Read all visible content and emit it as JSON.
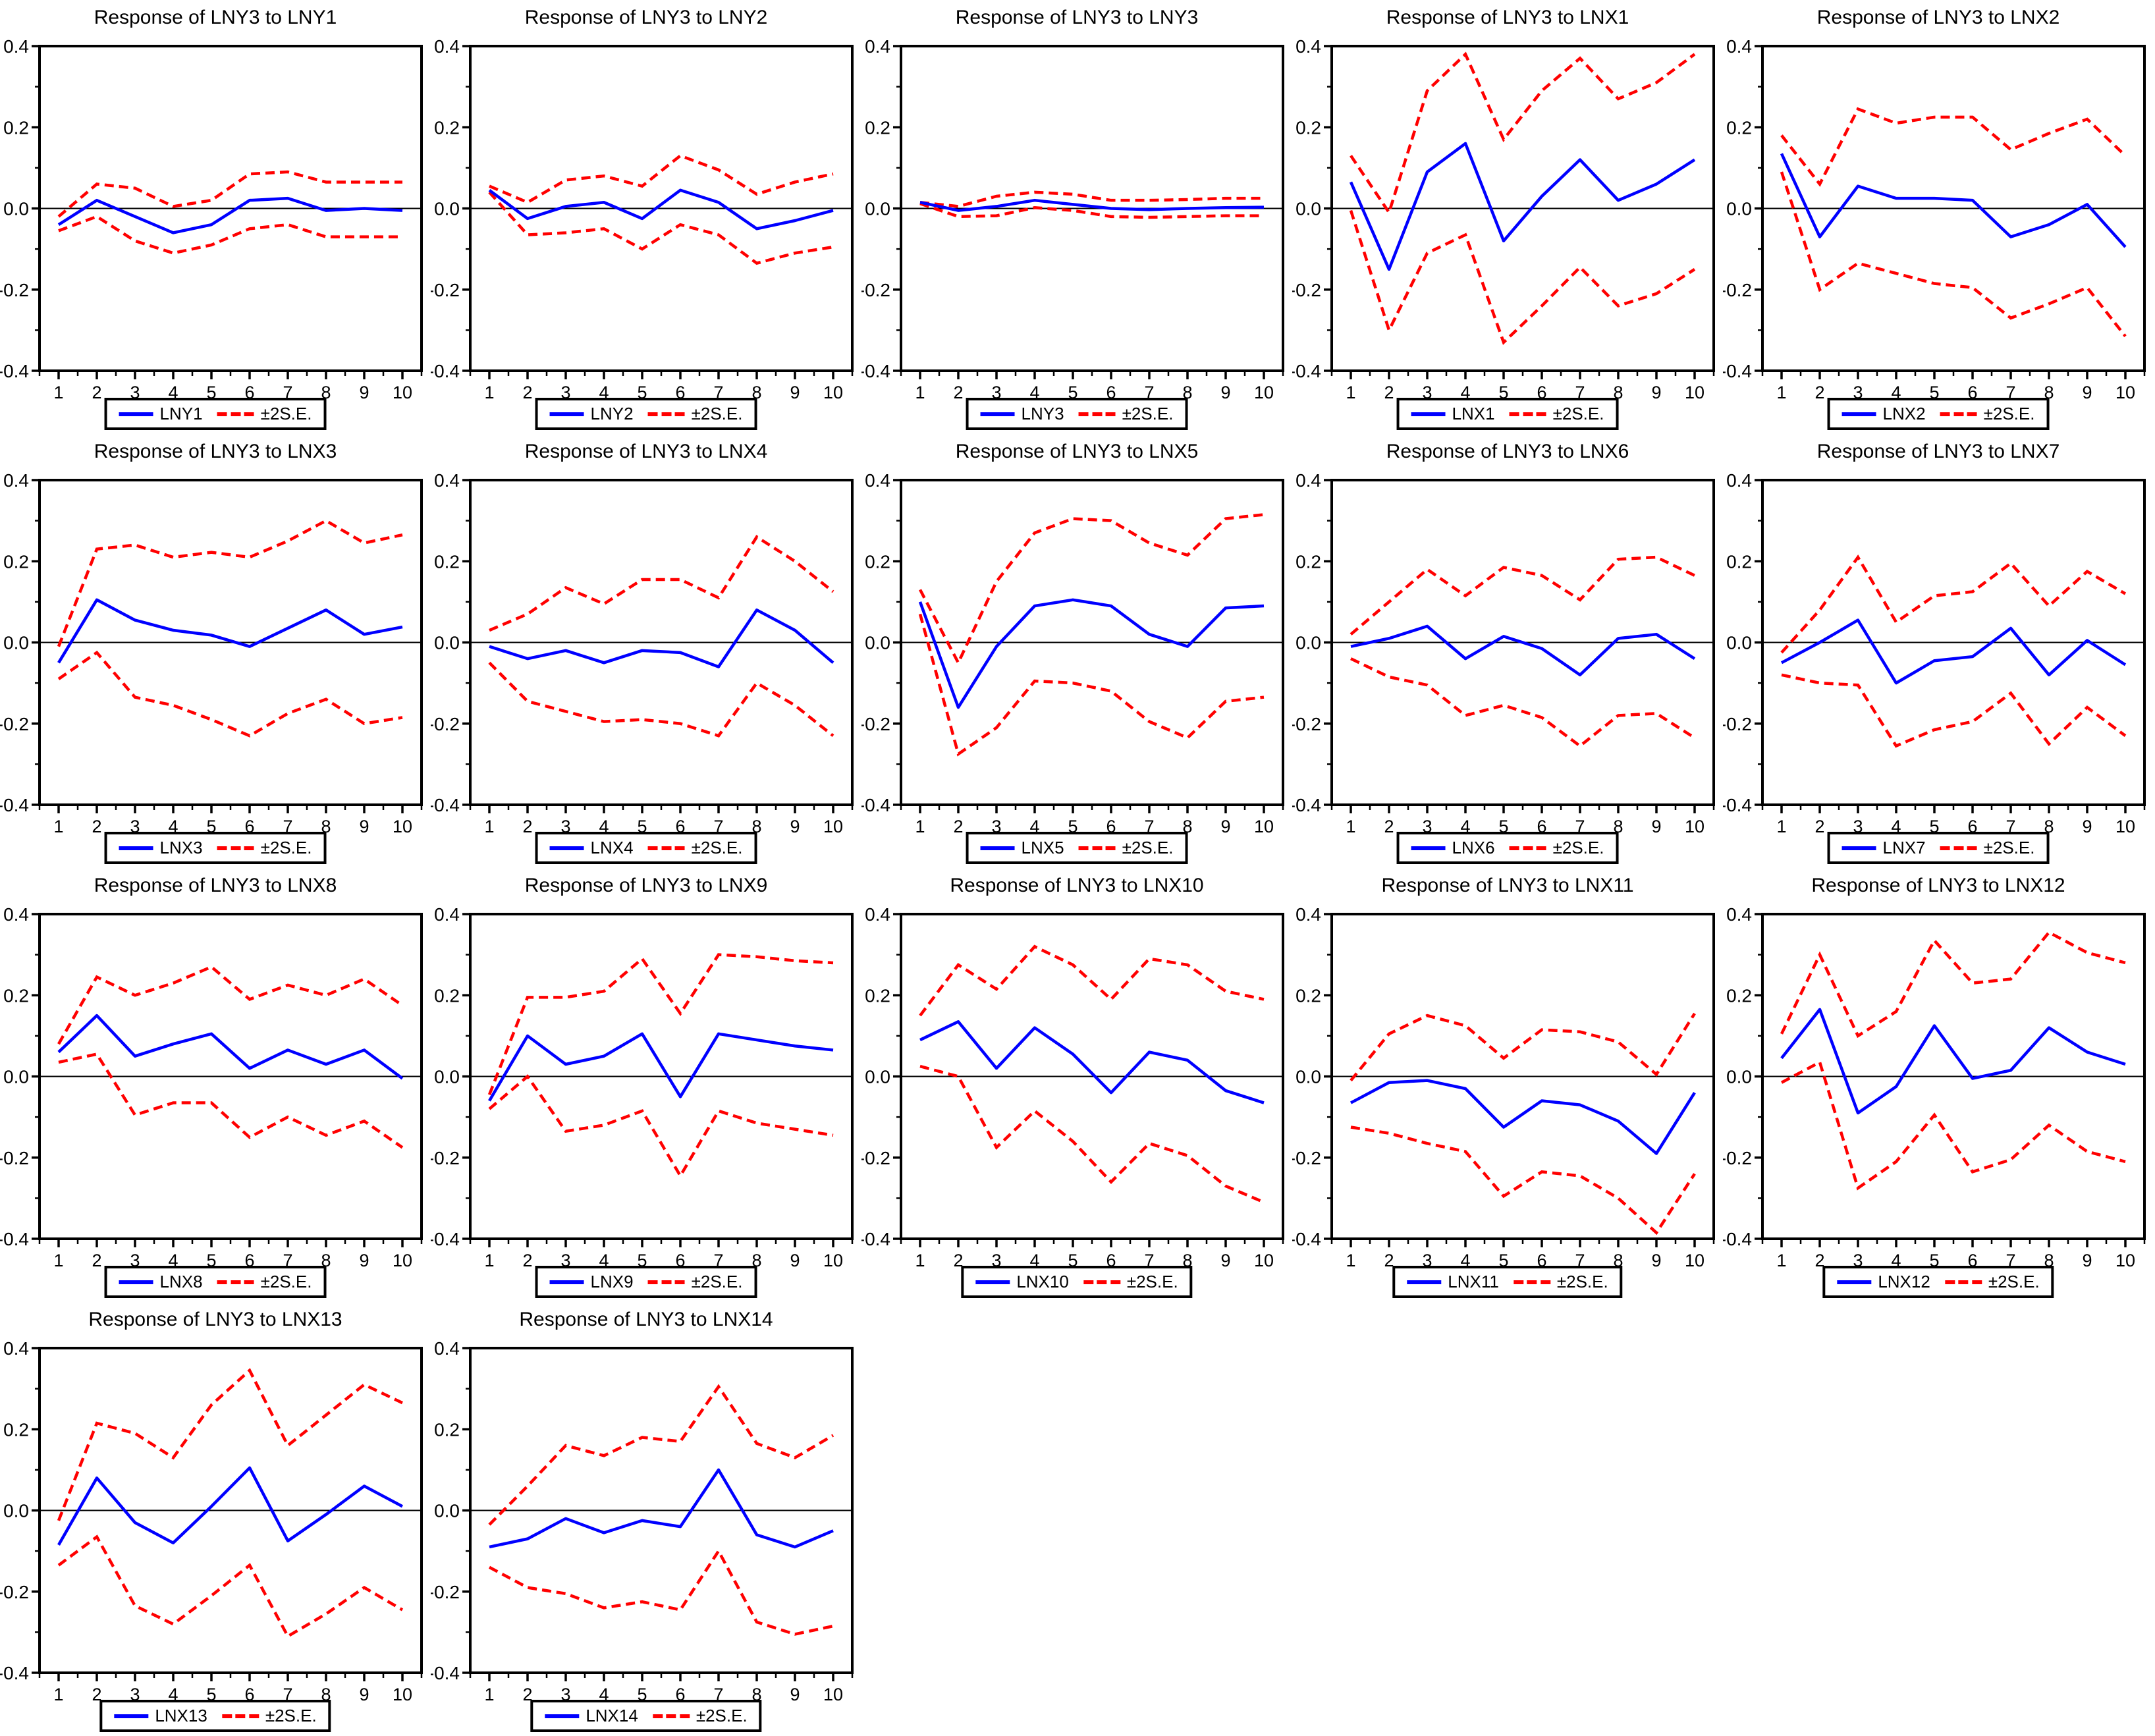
{
  "shared": {
    "se_label": "±2S.E.",
    "colors": {
      "response_line": "#0000ff",
      "se_band": "#ff0000",
      "axis": "#000000",
      "background": "#ffffff"
    },
    "axis": {
      "ylim": [
        -0.4,
        0.4
      ],
      "ytick_labels": [
        "0.4",
        "0.2",
        "0.0",
        "-0.2",
        "-0.4"
      ],
      "ytick_values": [
        0.4,
        0.2,
        0.0,
        -0.2,
        -0.4
      ],
      "y_minor_ticks": [
        0.3,
        0.1,
        -0.1,
        -0.3
      ],
      "xtick_labels": [
        "1",
        "2",
        "3",
        "4",
        "5",
        "6",
        "7",
        "8",
        "9",
        "10"
      ],
      "grid": "off",
      "legend_position": "bottom-center"
    }
  },
  "chart_data": [
    {
      "type": "line",
      "title": "Response of LNY3 to LNY1",
      "series_label": "LNY1",
      "x": [
        1,
        2,
        3,
        4,
        5,
        6,
        7,
        8,
        9,
        10
      ],
      "series": [
        {
          "name": "LNY1",
          "values": [
            -0.04,
            0.02,
            -0.02,
            -0.06,
            -0.04,
            0.02,
            0.025,
            -0.005,
            0.0,
            -0.005
          ]
        },
        {
          "name": "+2 S.E.",
          "values": [
            -0.02,
            0.06,
            0.05,
            0.005,
            0.02,
            0.085,
            0.09,
            0.065,
            0.065,
            0.065
          ]
        },
        {
          "name": "-2 S.E.",
          "values": [
            -0.055,
            -0.02,
            -0.08,
            -0.11,
            -0.09,
            -0.05,
            -0.04,
            -0.07,
            -0.07,
            -0.07
          ]
        }
      ]
    },
    {
      "type": "line",
      "title": "Response of LNY3 to LNY2",
      "series_label": "LNY2",
      "x": [
        1,
        2,
        3,
        4,
        5,
        6,
        7,
        8,
        9,
        10
      ],
      "series": [
        {
          "name": "LNY2",
          "values": [
            0.045,
            -0.025,
            0.005,
            0.015,
            -0.025,
            0.045,
            0.015,
            -0.05,
            -0.03,
            -0.005
          ]
        },
        {
          "name": "+2 S.E.",
          "values": [
            0.055,
            0.015,
            0.07,
            0.08,
            0.055,
            0.13,
            0.095,
            0.035,
            0.065,
            0.085
          ]
        },
        {
          "name": "-2 S.E.",
          "values": [
            0.04,
            -0.065,
            -0.06,
            -0.05,
            -0.1,
            -0.04,
            -0.065,
            -0.135,
            -0.11,
            -0.095
          ]
        }
      ]
    },
    {
      "type": "line",
      "title": "Response of LNY3 to LNY3",
      "series_label": "LNY3",
      "x": [
        1,
        2,
        3,
        4,
        5,
        6,
        7,
        8,
        9,
        10
      ],
      "series": [
        {
          "name": "LNY3",
          "values": [
            0.015,
            -0.005,
            0.005,
            0.02,
            0.01,
            0.0,
            -0.003,
            0.0,
            0.002,
            0.003
          ]
        },
        {
          "name": "+2 S.E.",
          "values": [
            0.015,
            0.005,
            0.03,
            0.04,
            0.035,
            0.02,
            0.02,
            0.022,
            0.025,
            0.025
          ]
        },
        {
          "name": "-2 S.E.",
          "values": [
            0.012,
            -0.02,
            -0.018,
            0.002,
            -0.005,
            -0.02,
            -0.022,
            -0.02,
            -0.018,
            -0.018
          ]
        }
      ]
    },
    {
      "type": "line",
      "title": "Response of LNY3 to LNX1",
      "series_label": "LNX1",
      "x": [
        1,
        2,
        3,
        4,
        5,
        6,
        7,
        8,
        9,
        10
      ],
      "series": [
        {
          "name": "LNX1",
          "values": [
            0.065,
            -0.15,
            0.09,
            0.16,
            -0.08,
            0.03,
            0.12,
            0.02,
            0.06,
            0.12
          ]
        },
        {
          "name": "+2 S.E.",
          "values": [
            0.13,
            -0.01,
            0.29,
            0.38,
            0.17,
            0.29,
            0.37,
            0.27,
            0.31,
            0.38
          ]
        },
        {
          "name": "-2 S.E.",
          "values": [
            -0.005,
            -0.3,
            -0.11,
            -0.065,
            -0.33,
            -0.24,
            -0.145,
            -0.24,
            -0.21,
            -0.15
          ]
        }
      ]
    },
    {
      "type": "line",
      "title": "Response of LNY3 to LNX2",
      "series_label": "LNX2",
      "x": [
        1,
        2,
        3,
        4,
        5,
        6,
        7,
        8,
        9,
        10
      ],
      "series": [
        {
          "name": "LNX2",
          "values": [
            0.135,
            -0.07,
            0.055,
            0.025,
            0.025,
            0.02,
            -0.07,
            -0.04,
            0.01,
            -0.095
          ]
        },
        {
          "name": "+2 S.E.",
          "values": [
            0.18,
            0.06,
            0.245,
            0.21,
            0.225,
            0.225,
            0.145,
            0.185,
            0.22,
            0.13
          ]
        },
        {
          "name": "-2 S.E.",
          "values": [
            0.09,
            -0.2,
            -0.135,
            -0.16,
            -0.185,
            -0.195,
            -0.27,
            -0.235,
            -0.195,
            -0.315
          ]
        }
      ]
    },
    {
      "type": "line",
      "title": "Response of LNY3 to LNX3",
      "series_label": "LNX3",
      "x": [
        1,
        2,
        3,
        4,
        5,
        6,
        7,
        8,
        9,
        10
      ],
      "series": [
        {
          "name": "LNX3",
          "values": [
            -0.05,
            0.105,
            0.055,
            0.03,
            0.018,
            -0.01,
            0.035,
            0.08,
            0.02,
            0.038
          ]
        },
        {
          "name": "+2 S.E.",
          "values": [
            -0.01,
            0.23,
            0.24,
            0.21,
            0.222,
            0.21,
            0.25,
            0.3,
            0.245,
            0.265
          ]
        },
        {
          "name": "-2 S.E.",
          "values": [
            -0.09,
            -0.025,
            -0.135,
            -0.155,
            -0.19,
            -0.23,
            -0.175,
            -0.14,
            -0.2,
            -0.185
          ]
        }
      ]
    },
    {
      "type": "line",
      "title": "Response of LNY3 to LNX4",
      "series_label": "LNX4",
      "x": [
        1,
        2,
        3,
        4,
        5,
        6,
        7,
        8,
        9,
        10
      ],
      "series": [
        {
          "name": "LNX4",
          "values": [
            -0.01,
            -0.04,
            -0.02,
            -0.05,
            -0.02,
            -0.025,
            -0.06,
            0.08,
            0.03,
            -0.05
          ]
        },
        {
          "name": "+2 S.E.",
          "values": [
            0.03,
            0.07,
            0.135,
            0.095,
            0.155,
            0.155,
            0.11,
            0.26,
            0.2,
            0.125
          ]
        },
        {
          "name": "-2 S.E.",
          "values": [
            -0.05,
            -0.145,
            -0.17,
            -0.195,
            -0.19,
            -0.2,
            -0.23,
            -0.1,
            -0.155,
            -0.23
          ]
        }
      ]
    },
    {
      "type": "line",
      "title": "Response of LNY3 to LNX5",
      "series_label": "LNX5",
      "x": [
        1,
        2,
        3,
        4,
        5,
        6,
        7,
        8,
        9,
        10
      ],
      "series": [
        {
          "name": "LNX5",
          "values": [
            0.1,
            -0.16,
            -0.01,
            0.09,
            0.105,
            0.09,
            0.02,
            -0.01,
            0.085,
            0.09
          ]
        },
        {
          "name": "+2 S.E.",
          "values": [
            0.13,
            -0.05,
            0.15,
            0.27,
            0.305,
            0.3,
            0.245,
            0.215,
            0.305,
            0.315
          ]
        },
        {
          "name": "-2 S.E.",
          "values": [
            0.07,
            -0.275,
            -0.21,
            -0.095,
            -0.1,
            -0.12,
            -0.195,
            -0.235,
            -0.145,
            -0.135
          ]
        }
      ]
    },
    {
      "type": "line",
      "title": "Response of LNY3 to LNX6",
      "series_label": "LNX6",
      "x": [
        1,
        2,
        3,
        4,
        5,
        6,
        7,
        8,
        9,
        10
      ],
      "series": [
        {
          "name": "LNX6",
          "values": [
            -0.01,
            0.01,
            0.04,
            -0.04,
            0.015,
            -0.015,
            -0.08,
            0.01,
            0.02,
            -0.04
          ]
        },
        {
          "name": "+2 S.E.",
          "values": [
            0.02,
            0.1,
            0.18,
            0.115,
            0.185,
            0.165,
            0.105,
            0.205,
            0.21,
            0.165
          ]
        },
        {
          "name": "-2 S.E.",
          "values": [
            -0.04,
            -0.085,
            -0.105,
            -0.18,
            -0.155,
            -0.185,
            -0.255,
            -0.18,
            -0.175,
            -0.235
          ]
        }
      ]
    },
    {
      "type": "line",
      "title": "Response of LNY3 to LNX7",
      "series_label": "LNX7",
      "x": [
        1,
        2,
        3,
        4,
        5,
        6,
        7,
        8,
        9,
        10
      ],
      "series": [
        {
          "name": "LNX7",
          "values": [
            -0.05,
            0.0,
            0.055,
            -0.1,
            -0.045,
            -0.035,
            0.035,
            -0.08,
            0.005,
            -0.055
          ]
        },
        {
          "name": "+2 S.E.",
          "values": [
            -0.025,
            0.08,
            0.21,
            0.05,
            0.115,
            0.125,
            0.195,
            0.09,
            0.175,
            0.12
          ]
        },
        {
          "name": "-2 S.E.",
          "values": [
            -0.08,
            -0.1,
            -0.105,
            -0.255,
            -0.215,
            -0.195,
            -0.125,
            -0.25,
            -0.16,
            -0.23
          ]
        }
      ]
    },
    {
      "type": "line",
      "title": "Response of LNY3 to LNX8",
      "series_label": "LNX8",
      "x": [
        1,
        2,
        3,
        4,
        5,
        6,
        7,
        8,
        9,
        10
      ],
      "series": [
        {
          "name": "LNX8",
          "values": [
            0.06,
            0.15,
            0.05,
            0.08,
            0.105,
            0.02,
            0.065,
            0.03,
            0.065,
            -0.005
          ]
        },
        {
          "name": "+2 S.E.",
          "values": [
            0.08,
            0.245,
            0.2,
            0.23,
            0.27,
            0.19,
            0.225,
            0.2,
            0.24,
            0.175
          ]
        },
        {
          "name": "-2 S.E.",
          "values": [
            0.035,
            0.055,
            -0.095,
            -0.065,
            -0.065,
            -0.15,
            -0.1,
            -0.145,
            -0.11,
            -0.175
          ]
        }
      ]
    },
    {
      "type": "line",
      "title": "Response of LNY3 to LNX9",
      "series_label": "LNX9",
      "x": [
        1,
        2,
        3,
        4,
        5,
        6,
        7,
        8,
        9,
        10
      ],
      "series": [
        {
          "name": "LNX9",
          "values": [
            -0.06,
            0.1,
            0.03,
            0.05,
            0.105,
            -0.05,
            0.105,
            0.09,
            0.075,
            0.065
          ]
        },
        {
          "name": "+2 S.E.",
          "values": [
            -0.045,
            0.195,
            0.195,
            0.21,
            0.29,
            0.155,
            0.3,
            0.295,
            0.285,
            0.28
          ]
        },
        {
          "name": "-2 S.E.",
          "values": [
            -0.08,
            0.0,
            -0.135,
            -0.12,
            -0.085,
            -0.245,
            -0.085,
            -0.115,
            -0.13,
            -0.145
          ]
        }
      ]
    },
    {
      "type": "line",
      "title": "Response of LNY3 to LNX10",
      "series_label": "LNX10",
      "x": [
        1,
        2,
        3,
        4,
        5,
        6,
        7,
        8,
        9,
        10
      ],
      "series": [
        {
          "name": "LNX10",
          "values": [
            0.09,
            0.135,
            0.02,
            0.12,
            0.055,
            -0.04,
            0.06,
            0.04,
            -0.035,
            -0.065
          ]
        },
        {
          "name": "+2 S.E.",
          "values": [
            0.15,
            0.275,
            0.215,
            0.32,
            0.275,
            0.19,
            0.29,
            0.275,
            0.21,
            0.19
          ]
        },
        {
          "name": "-2 S.E.",
          "values": [
            0.025,
            0.0,
            -0.175,
            -0.085,
            -0.16,
            -0.26,
            -0.165,
            -0.195,
            -0.27,
            -0.31
          ]
        }
      ]
    },
    {
      "type": "line",
      "title": "Response of LNY3 to LNX11",
      "series_label": "LNX11",
      "x": [
        1,
        2,
        3,
        4,
        5,
        6,
        7,
        8,
        9,
        10
      ],
      "series": [
        {
          "name": "LNX11",
          "values": [
            -0.065,
            -0.015,
            -0.01,
            -0.03,
            -0.125,
            -0.06,
            -0.07,
            -0.11,
            -0.19,
            -0.04
          ]
        },
        {
          "name": "+2 S.E.",
          "values": [
            -0.01,
            0.105,
            0.15,
            0.125,
            0.045,
            0.115,
            0.11,
            0.085,
            0.005,
            0.155
          ]
        },
        {
          "name": "-2 S.E.",
          "values": [
            -0.125,
            -0.14,
            -0.165,
            -0.185,
            -0.295,
            -0.235,
            -0.245,
            -0.3,
            -0.385,
            -0.24
          ]
        }
      ]
    },
    {
      "type": "line",
      "title": "Response of LNY3 to LNX12",
      "series_label": "LNX12",
      "x": [
        1,
        2,
        3,
        4,
        5,
        6,
        7,
        8,
        9,
        10
      ],
      "series": [
        {
          "name": "LNX12",
          "values": [
            0.045,
            0.165,
            -0.09,
            -0.025,
            0.125,
            -0.005,
            0.015,
            0.12,
            0.06,
            0.03
          ]
        },
        {
          "name": "+2 S.E.",
          "values": [
            0.105,
            0.3,
            0.1,
            0.16,
            0.335,
            0.23,
            0.24,
            0.355,
            0.305,
            0.28
          ]
        },
        {
          "name": "-2 S.E.",
          "values": [
            -0.015,
            0.035,
            -0.275,
            -0.21,
            -0.095,
            -0.235,
            -0.205,
            -0.12,
            -0.185,
            -0.21
          ]
        }
      ]
    },
    {
      "type": "line",
      "title": "Response of LNY3 to LNX13",
      "series_label": "LNX13",
      "x": [
        1,
        2,
        3,
        4,
        5,
        6,
        7,
        8,
        9,
        10
      ],
      "series": [
        {
          "name": "LNX13",
          "values": [
            -0.085,
            0.08,
            -0.03,
            -0.08,
            0.01,
            0.105,
            -0.075,
            -0.01,
            0.06,
            0.01
          ]
        },
        {
          "name": "+2 S.E.",
          "values": [
            -0.025,
            0.215,
            0.19,
            0.13,
            0.26,
            0.345,
            0.16,
            0.235,
            0.31,
            0.265
          ]
        },
        {
          "name": "-2 S.E.",
          "values": [
            -0.135,
            -0.065,
            -0.235,
            -0.28,
            -0.21,
            -0.135,
            -0.31,
            -0.255,
            -0.19,
            -0.245
          ]
        }
      ]
    },
    {
      "type": "line",
      "title": "Response of LNY3 to LNX14",
      "series_label": "LNX14",
      "x": [
        1,
        2,
        3,
        4,
        5,
        6,
        7,
        8,
        9,
        10
      ],
      "series": [
        {
          "name": "LNX14",
          "values": [
            -0.09,
            -0.07,
            -0.02,
            -0.055,
            -0.025,
            -0.04,
            0.1,
            -0.06,
            -0.09,
            -0.05
          ]
        },
        {
          "name": "+2 S.E.",
          "values": [
            -0.035,
            0.06,
            0.16,
            0.135,
            0.18,
            0.17,
            0.305,
            0.165,
            0.13,
            0.185
          ]
        },
        {
          "name": "-2 S.E.",
          "values": [
            -0.14,
            -0.19,
            -0.205,
            -0.24,
            -0.225,
            -0.245,
            -0.1,
            -0.275,
            -0.305,
            -0.285
          ]
        }
      ]
    }
  ]
}
